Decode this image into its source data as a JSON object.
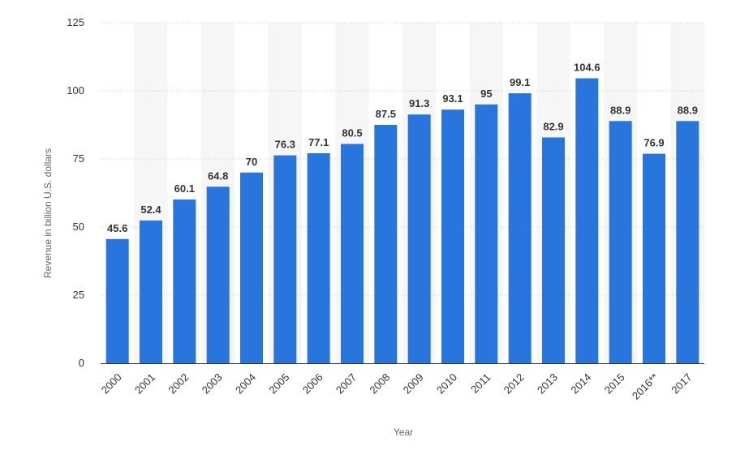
{
  "chart_data": {
    "type": "bar",
    "categories": [
      "2000",
      "2001",
      "2002",
      "2003",
      "2004",
      "2005",
      "2006",
      "2007",
      "2008",
      "2009",
      "2010",
      "2011",
      "2012",
      "2013",
      "2014",
      "2015",
      "2016**",
      "2017"
    ],
    "values": [
      45.6,
      52.4,
      60.1,
      64.8,
      70,
      76.3,
      77.1,
      80.5,
      87.5,
      91.3,
      93.1,
      95,
      99.1,
      82.9,
      104.6,
      88.9,
      76.9,
      88.9
    ],
    "value_labels": [
      "45.6",
      "52.4",
      "60.1",
      "64.8",
      "70",
      "76.3",
      "77.1",
      "80.5",
      "87.5",
      "91.3",
      "93.1",
      "95",
      "99.1",
      "82.9",
      "104.6",
      "88.9",
      "76.9",
      "88.9"
    ],
    "xlabel": "Year",
    "ylabel": "Revenue in billion U.S. dollars",
    "ylim": [
      0,
      125
    ],
    "yticks": [
      0,
      25,
      50,
      75,
      100,
      125
    ],
    "ytick_labels": [
      "0",
      "25",
      "50",
      "75",
      "100",
      "125"
    ],
    "grid": true,
    "legend": "none",
    "colors": {
      "bar": "#2876dd",
      "band": "#f6f6f6",
      "grid": "#cccccc",
      "axis": "#333333"
    }
  }
}
